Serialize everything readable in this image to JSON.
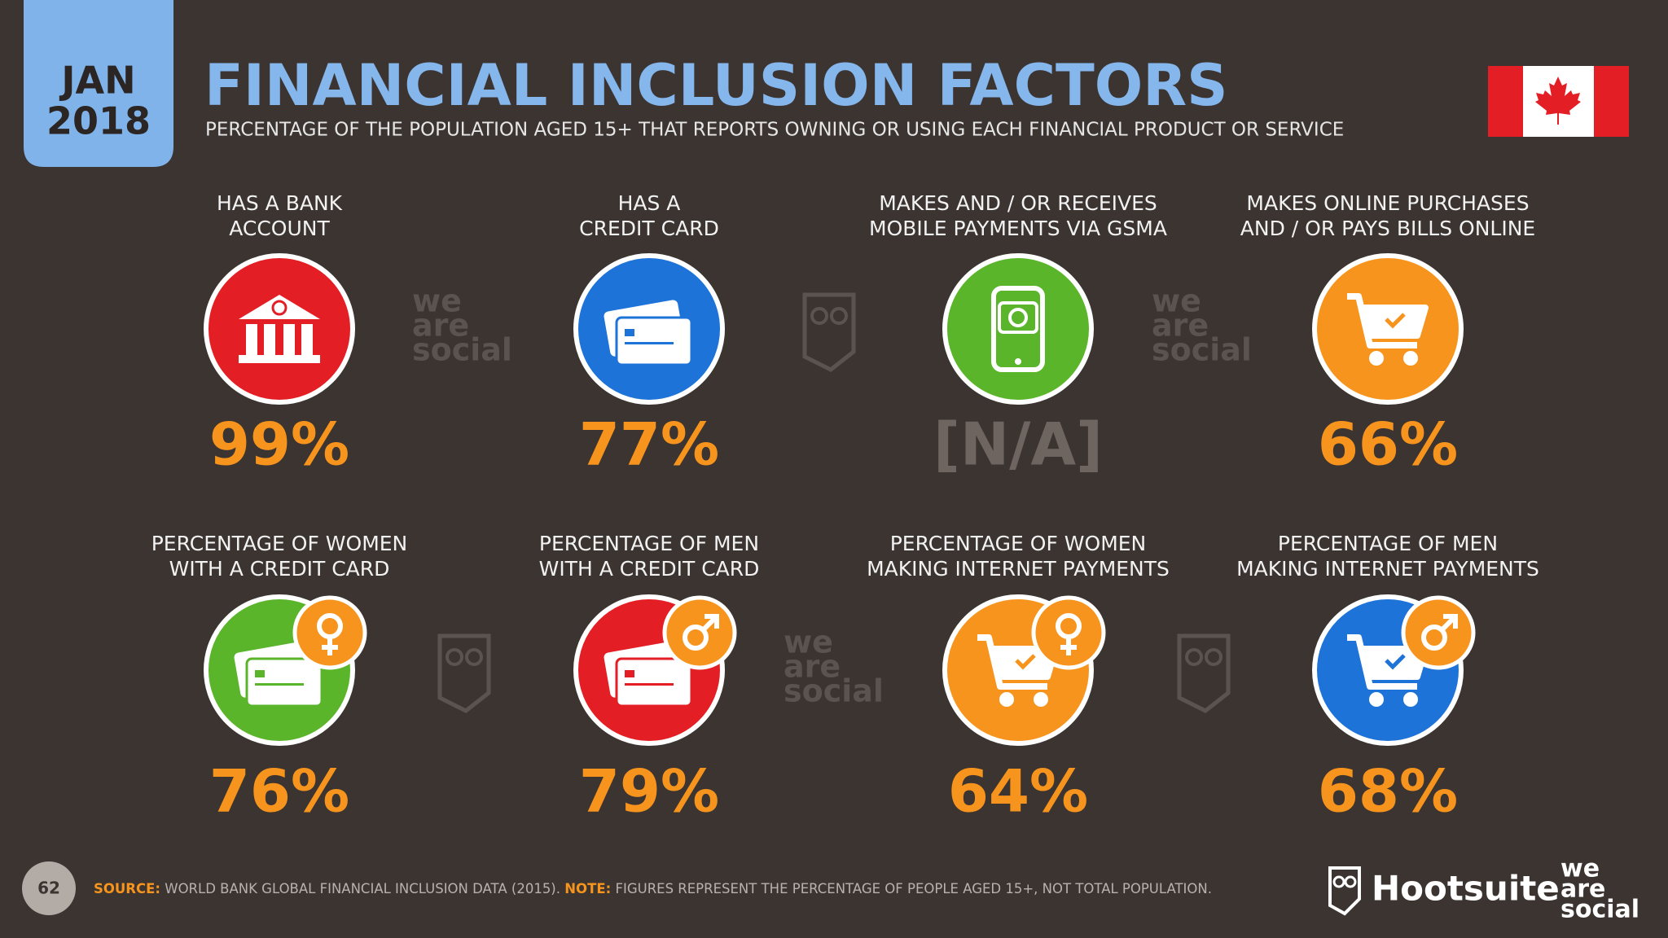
{
  "badge": {
    "month": "JAN",
    "year": "2018"
  },
  "header": {
    "title": "FINANCIAL INCLUSION FACTORS",
    "subtitle": "PERCENTAGE OF THE POPULATION AGED 15+ THAT REPORTS OWNING OR USING EACH FINANCIAL PRODUCT OR SERVICE"
  },
  "items": [
    {
      "label": [
        "HAS A BANK",
        "ACCOUNT"
      ],
      "value": "99%"
    },
    {
      "label": [
        "HAS A",
        "CREDIT CARD"
      ],
      "value": "77%"
    },
    {
      "label": [
        "MAKES AND / OR RECEIVES",
        "MOBILE PAYMENTS VIA GSMA"
      ],
      "value": "[N/A]"
    },
    {
      "label": [
        "MAKES ONLINE PURCHASES",
        "AND / OR PAYS BILLS ONLINE"
      ],
      "value": "66%"
    },
    {
      "label": [
        "PERCENTAGE OF WOMEN",
        "WITH A CREDIT CARD"
      ],
      "value": "76%"
    },
    {
      "label": [
        "PERCENTAGE OF MEN",
        "WITH A CREDIT CARD"
      ],
      "value": "79%"
    },
    {
      "label": [
        "PERCENTAGE OF WOMEN",
        "MAKING INTERNET PAYMENTS"
      ],
      "value": "64%"
    },
    {
      "label": [
        "PERCENTAGE OF MEN",
        "MAKING INTERNET PAYMENTS"
      ],
      "value": "68%"
    }
  ],
  "footer": {
    "page": "62",
    "source_label": "SOURCE:",
    "source": "WORLD BANK GLOBAL FINANCIAL INCLUSION DATA (2015).",
    "note_label": "NOTE:",
    "note": "FIGURES REPRESENT THE PERCENTAGE OF PEOPLE AGED 15+, NOT TOTAL POPULATION."
  },
  "brand": {
    "hootsuite": "Hootsuite",
    "was": [
      "we",
      "are",
      "social"
    ]
  }
}
